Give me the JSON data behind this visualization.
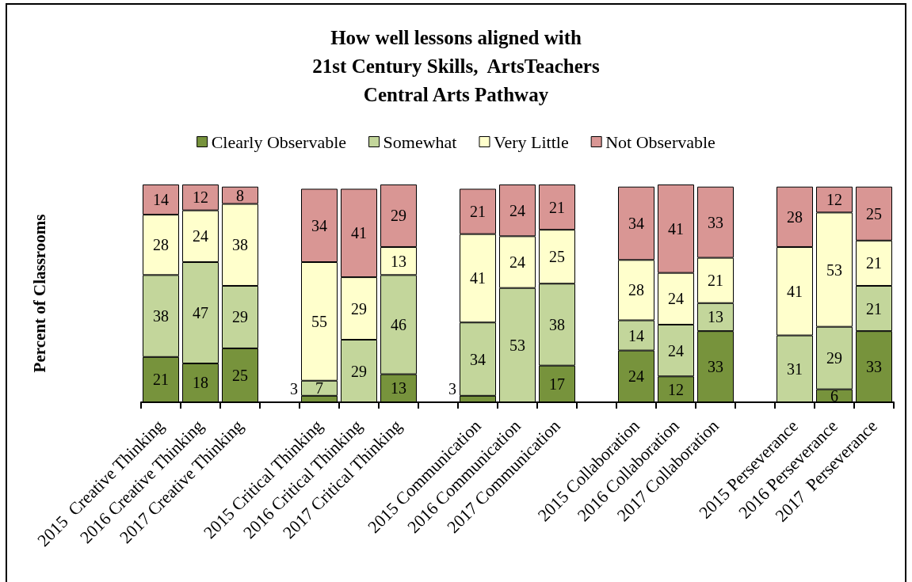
{
  "chart_data": {
    "type": "bar",
    "stacked": true,
    "data_labels": true,
    "grid": false,
    "legend": "top",
    "title": "How well lessons aligned with\n21st Century Skills,  ArtsTeachers\nCentral Arts Pathway",
    "ylabel": "Percent of Classrooms",
    "categories": [
      "2015  Creative Thinking",
      "2016 Creative Thinking",
      "2017 Creative Thinking",
      null,
      "2015 Critical Thinking",
      "2016 Critical Thinking",
      "2017 Critical Thinking",
      null,
      "2015 Communication",
      "2016 Communication",
      "2017 Communication",
      null,
      "2015 Collaboration",
      "2016 Collaboration",
      "2017 Collaboration",
      null,
      "2015 Perseverance",
      "2016 Perseverance",
      "2017  Perseverance"
    ],
    "series": [
      {
        "name": "Clearly Observable",
        "color": "#77933c",
        "values": [
          21,
          18,
          25,
          null,
          3,
          null,
          13,
          null,
          3,
          null,
          17,
          null,
          24,
          12,
          33,
          null,
          null,
          6,
          33
        ]
      },
      {
        "name": "Somewhat",
        "color": "#c3d69b",
        "values": [
          38,
          47,
          29,
          null,
          7,
          29,
          46,
          null,
          34,
          53,
          38,
          null,
          14,
          24,
          13,
          null,
          31,
          29,
          21
        ]
      },
      {
        "name": "Very Little",
        "color": "#ffffcc",
        "values": [
          28,
          24,
          38,
          null,
          55,
          29,
          13,
          null,
          41,
          24,
          25,
          null,
          28,
          24,
          21,
          null,
          41,
          53,
          21
        ]
      },
      {
        "name": "Not Observable",
        "color": "#d99694",
        "values": [
          14,
          12,
          8,
          null,
          34,
          41,
          29,
          null,
          21,
          24,
          21,
          null,
          34,
          41,
          33,
          null,
          28,
          12,
          25
        ]
      }
    ]
  }
}
